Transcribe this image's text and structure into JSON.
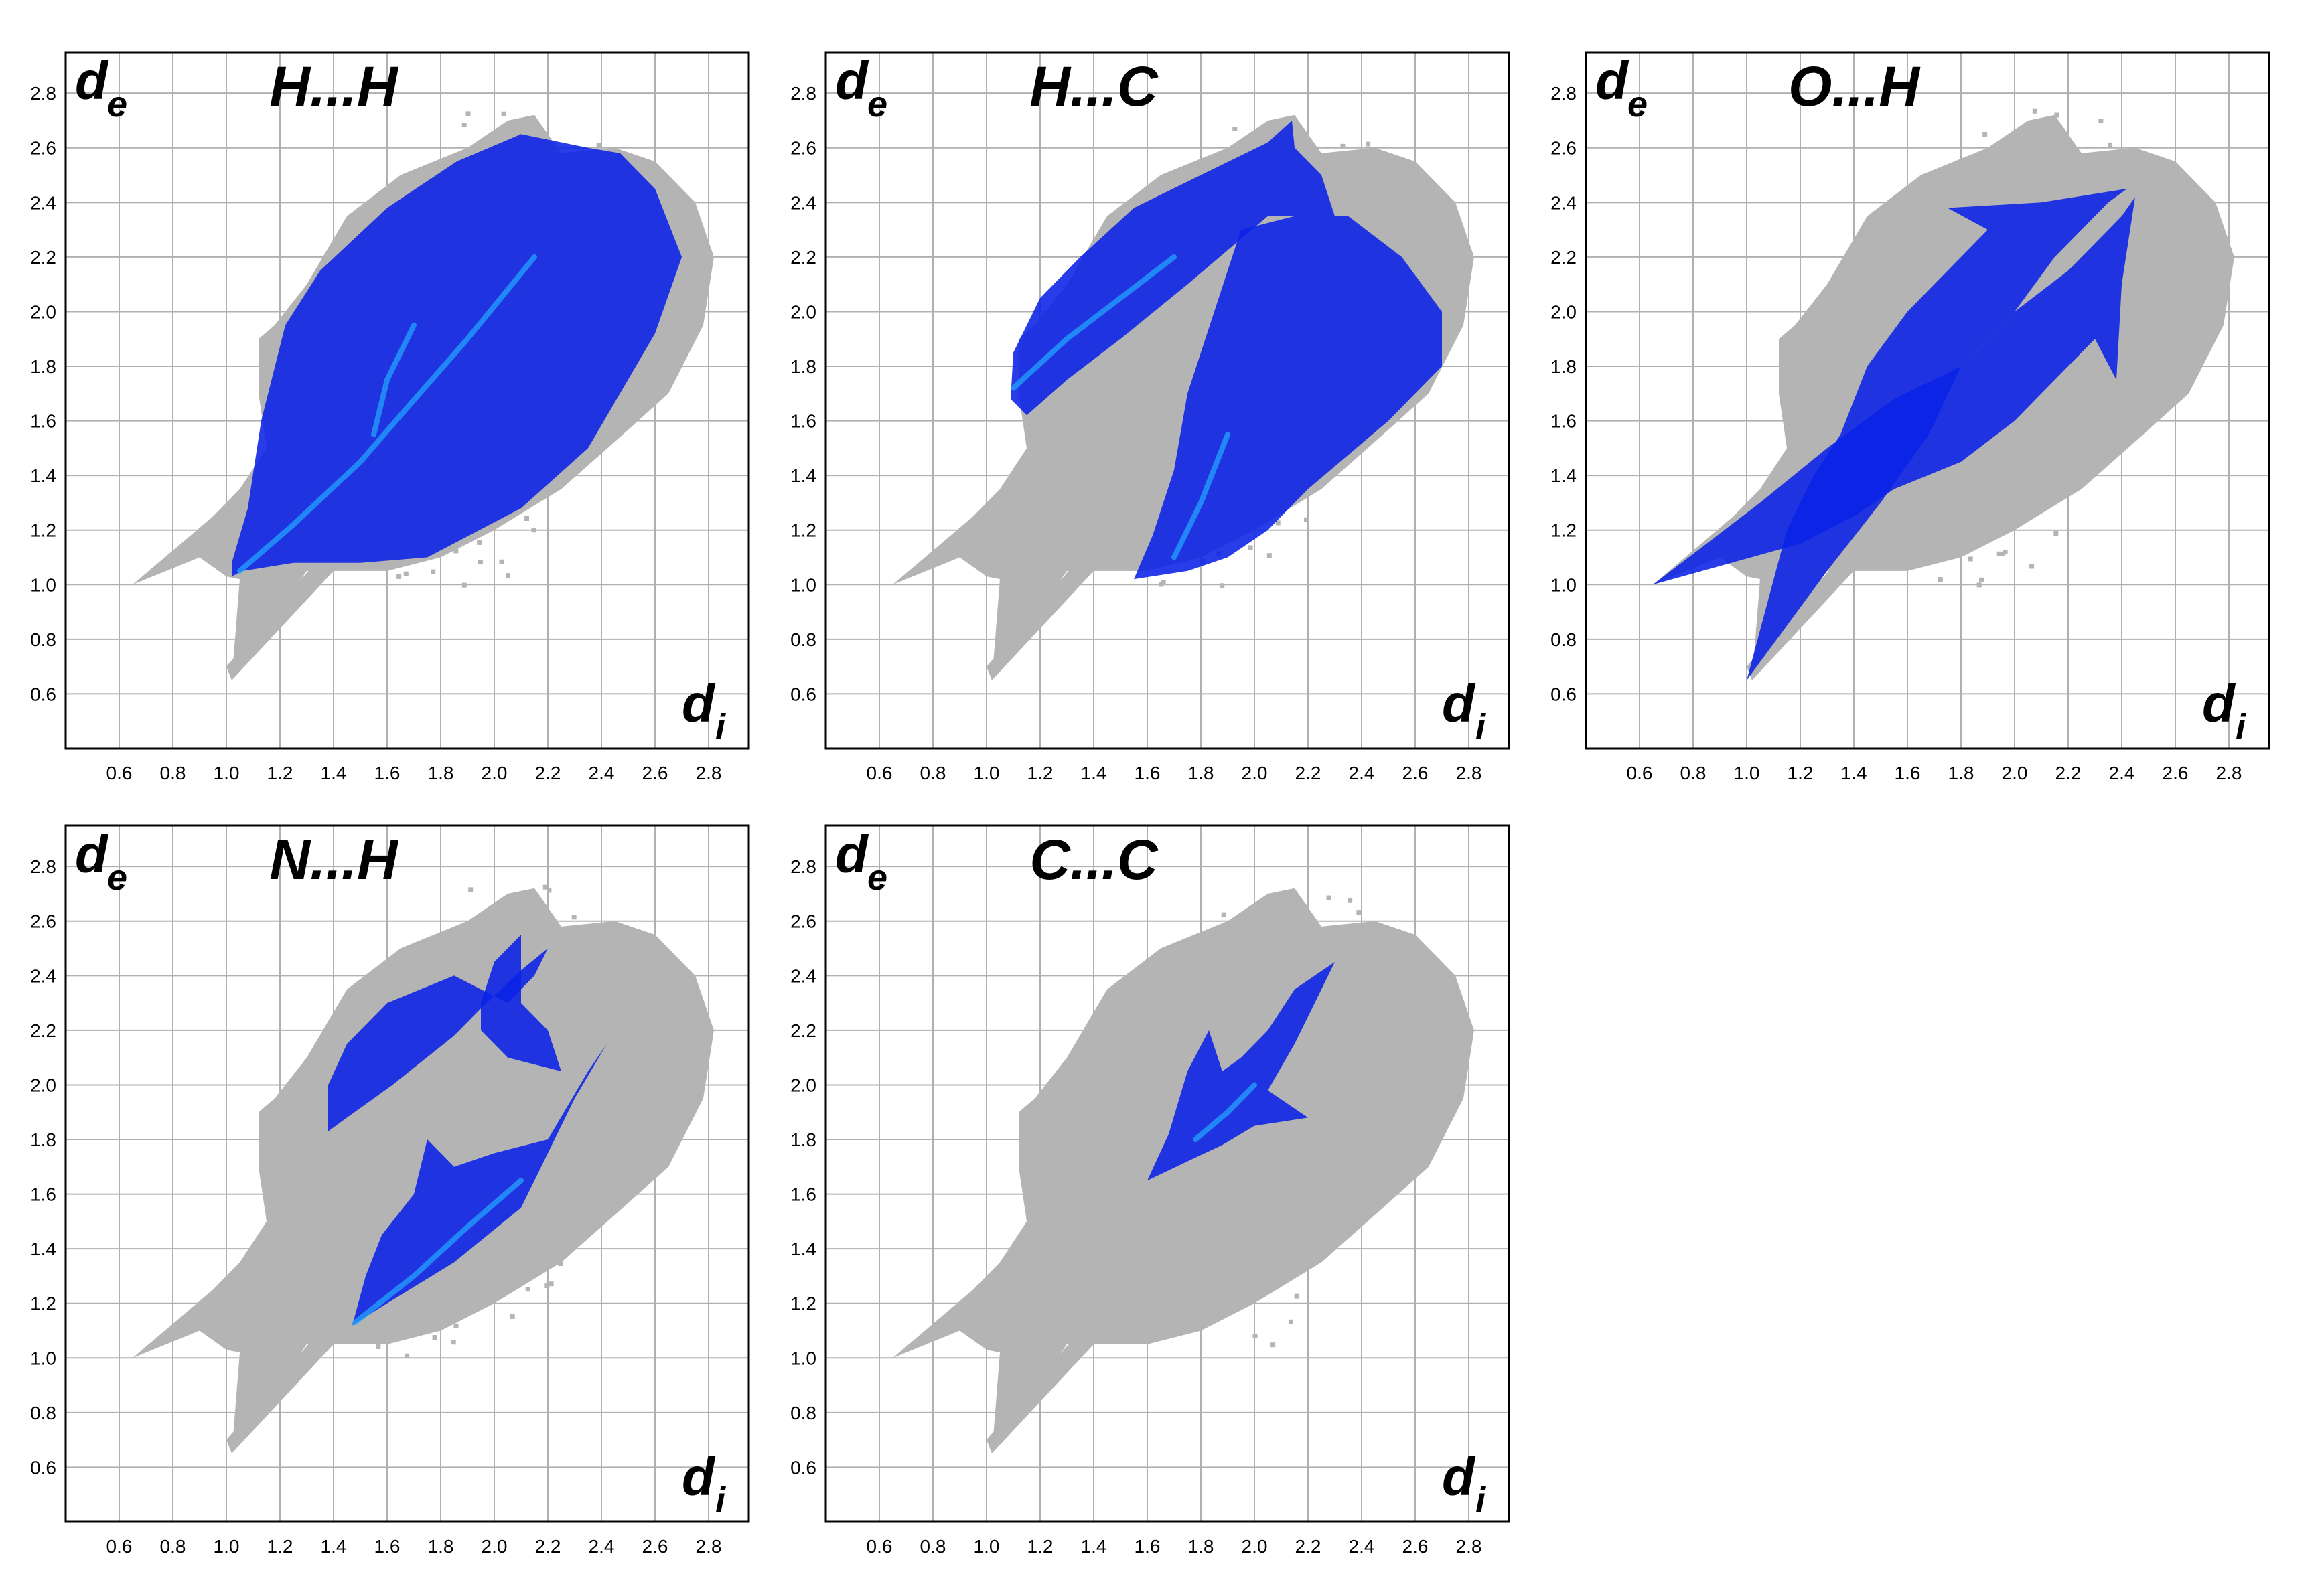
{
  "axis": {
    "ticks": [
      0.6,
      0.8,
      1.0,
      1.2,
      1.4,
      1.6,
      1.8,
      2.0,
      2.2,
      2.4,
      2.6,
      2.8
    ],
    "x_range": [
      0.4,
      2.95
    ],
    "y_range": [
      0.4,
      2.95
    ],
    "xlabel": "d",
    "xlabel_sub": "i",
    "ylabel": "d",
    "ylabel_sub": "e",
    "grid": true
  },
  "colors": {
    "background_points": "#b4b4b4",
    "highlight_points": "#0a22e6",
    "highlight_dense": "#22aaff",
    "frame": "#000000",
    "grid": "#b0b0b0"
  },
  "chart_data": [
    {
      "type": "scatter",
      "title": "H...H",
      "xlabel": "d",
      "ylabel": "d",
      "highlight_regions": [
        {
          "points": [
            [
              1.02,
              1.03
            ],
            [
              1.06,
              1.05
            ],
            [
              1.25,
              1.08
            ],
            [
              1.5,
              1.08
            ],
            [
              1.75,
              1.1
            ],
            [
              2.1,
              1.28
            ],
            [
              2.35,
              1.5
            ],
            [
              2.6,
              1.92
            ],
            [
              2.7,
              2.2
            ],
            [
              2.6,
              2.45
            ],
            [
              2.47,
              2.58
            ],
            [
              2.35,
              2.6
            ],
            [
              2.1,
              2.65
            ],
            [
              1.86,
              2.55
            ],
            [
              1.6,
              2.38
            ],
            [
              1.35,
              2.15
            ],
            [
              1.22,
              1.95
            ],
            [
              1.13,
              1.6
            ],
            [
              1.08,
              1.28
            ],
            [
              1.02,
              1.08
            ]
          ]
        }
      ],
      "dense_lines": [
        [
          [
            1.05,
            1.05
          ],
          [
            1.25,
            1.22
          ],
          [
            1.5,
            1.45
          ],
          [
            1.65,
            1.62
          ],
          [
            1.9,
            1.9
          ],
          [
            2.15,
            2.2
          ]
        ],
        [
          [
            1.55,
            1.55
          ],
          [
            1.6,
            1.75
          ],
          [
            1.7,
            1.95
          ]
        ]
      ]
    },
    {
      "type": "scatter",
      "title": "H...C",
      "xlabel": "d",
      "ylabel": "d",
      "highlight_regions": [
        {
          "points": [
            [
              1.09,
              1.68
            ],
            [
              1.1,
              1.85
            ],
            [
              1.2,
              2.05
            ],
            [
              1.35,
              2.2
            ],
            [
              1.55,
              2.38
            ],
            [
              1.8,
              2.5
            ],
            [
              2.05,
              2.62
            ],
            [
              2.14,
              2.7
            ],
            [
              2.15,
              2.6
            ],
            [
              2.25,
              2.5
            ],
            [
              2.3,
              2.35
            ],
            [
              2.05,
              2.35
            ],
            [
              1.75,
              2.1
            ],
            [
              1.5,
              1.9
            ],
            [
              1.3,
              1.75
            ],
            [
              1.15,
              1.62
            ]
          ]
        },
        {
          "points": [
            [
              1.55,
              1.02
            ],
            [
              1.75,
              1.05
            ],
            [
              1.9,
              1.1
            ],
            [
              2.05,
              1.2
            ],
            [
              2.2,
              1.35
            ],
            [
              2.5,
              1.6
            ],
            [
              2.7,
              1.8
            ],
            [
              2.7,
              2.0
            ],
            [
              2.55,
              2.2
            ],
            [
              2.35,
              2.35
            ],
            [
              2.15,
              2.35
            ],
            [
              1.95,
              2.3
            ],
            [
              1.85,
              2.0
            ],
            [
              1.75,
              1.7
            ],
            [
              1.7,
              1.42
            ],
            [
              1.62,
              1.18
            ]
          ]
        }
      ],
      "dense_lines": [
        [
          [
            1.1,
            1.72
          ],
          [
            1.3,
            1.9
          ],
          [
            1.5,
            2.05
          ],
          [
            1.7,
            2.2
          ]
        ],
        [
          [
            1.7,
            1.1
          ],
          [
            1.8,
            1.3
          ],
          [
            1.9,
            1.55
          ]
        ]
      ]
    },
    {
      "type": "scatter",
      "title": "O...H",
      "xlabel": "d",
      "ylabel": "d",
      "highlight_regions": [
        {
          "points": [
            [
              0.65,
              1.0
            ],
            [
              1.05,
              1.3
            ],
            [
              1.3,
              1.5
            ],
            [
              1.55,
              1.68
            ],
            [
              1.8,
              1.8
            ],
            [
              2.0,
              2.0
            ],
            [
              2.2,
              2.15
            ],
            [
              2.4,
              2.35
            ],
            [
              2.45,
              2.42
            ],
            [
              2.4,
              2.1
            ],
            [
              2.38,
              1.75
            ],
            [
              2.3,
              1.9
            ],
            [
              2.0,
              1.6
            ],
            [
              1.8,
              1.45
            ],
            [
              1.55,
              1.35
            ],
            [
              1.4,
              1.25
            ],
            [
              1.2,
              1.15
            ]
          ]
        },
        {
          "points": [
            [
              1.0,
              0.65
            ],
            [
              1.3,
              1.05
            ],
            [
              1.5,
              1.3
            ],
            [
              1.68,
              1.55
            ],
            [
              1.8,
              1.8
            ],
            [
              2.0,
              2.0
            ],
            [
              2.15,
              2.2
            ],
            [
              2.35,
              2.4
            ],
            [
              2.42,
              2.45
            ],
            [
              2.1,
              2.4
            ],
            [
              1.75,
              2.38
            ],
            [
              1.9,
              2.3
            ],
            [
              1.6,
              2.0
            ],
            [
              1.45,
              1.8
            ],
            [
              1.35,
              1.55
            ],
            [
              1.25,
              1.4
            ],
            [
              1.15,
              1.2
            ]
          ]
        }
      ],
      "dense_lines": []
    },
    {
      "type": "scatter",
      "title": "N...H",
      "xlabel": "d",
      "ylabel": "d",
      "highlight_regions": [
        {
          "points": [
            [
              1.47,
              1.12
            ],
            [
              1.6,
              1.2
            ],
            [
              1.85,
              1.35
            ],
            [
              2.1,
              1.55
            ],
            [
              2.3,
              1.95
            ],
            [
              2.42,
              2.15
            ],
            [
              2.35,
              2.05
            ],
            [
              2.2,
              1.8
            ],
            [
              2.0,
              1.75
            ],
            [
              1.85,
              1.7
            ],
            [
              1.75,
              1.8
            ],
            [
              1.7,
              1.6
            ],
            [
              1.58,
              1.45
            ],
            [
              1.52,
              1.3
            ]
          ]
        },
        {
          "points": [
            [
              1.38,
              1.83
            ],
            [
              1.45,
              1.88
            ],
            [
              1.62,
              2.0
            ],
            [
              1.85,
              2.18
            ],
            [
              1.95,
              2.28
            ],
            [
              2.1,
              2.42
            ],
            [
              2.2,
              2.5
            ],
            [
              2.15,
              2.4
            ],
            [
              2.05,
              2.3
            ],
            [
              1.85,
              2.4
            ],
            [
              1.6,
              2.3
            ],
            [
              1.45,
              2.15
            ],
            [
              1.38,
              2.0
            ]
          ]
        },
        {
          "points": [
            [
              1.95,
              2.2
            ],
            [
              2.05,
              2.1
            ],
            [
              2.25,
              2.05
            ],
            [
              2.2,
              2.2
            ],
            [
              2.1,
              2.3
            ],
            [
              2.1,
              2.55
            ],
            [
              2.0,
              2.45
            ],
            [
              1.95,
              2.3
            ]
          ]
        }
      ],
      "dense_lines": [
        [
          [
            1.48,
            1.13
          ],
          [
            1.7,
            1.3
          ],
          [
            1.9,
            1.48
          ],
          [
            2.1,
            1.65
          ]
        ]
      ]
    },
    {
      "type": "scatter",
      "title": "C...C",
      "xlabel": "d",
      "ylabel": "d",
      "highlight_regions": [
        {
          "points": [
            [
              1.6,
              1.65
            ],
            [
              1.75,
              1.72
            ],
            [
              1.88,
              1.78
            ],
            [
              2.0,
              1.85
            ],
            [
              2.2,
              1.88
            ],
            [
              2.05,
              1.98
            ],
            [
              2.15,
              2.15
            ],
            [
              2.25,
              2.35
            ],
            [
              2.3,
              2.45
            ],
            [
              2.15,
              2.35
            ],
            [
              2.05,
              2.2
            ],
            [
              1.95,
              2.1
            ],
            [
              1.88,
              2.05
            ],
            [
              1.83,
              2.2
            ],
            [
              1.75,
              2.05
            ],
            [
              1.68,
              1.82
            ]
          ]
        }
      ],
      "dense_lines": [
        [
          [
            1.78,
            1.8
          ],
          [
            1.9,
            1.9
          ],
          [
            2.0,
            2.0
          ]
        ]
      ]
    }
  ]
}
